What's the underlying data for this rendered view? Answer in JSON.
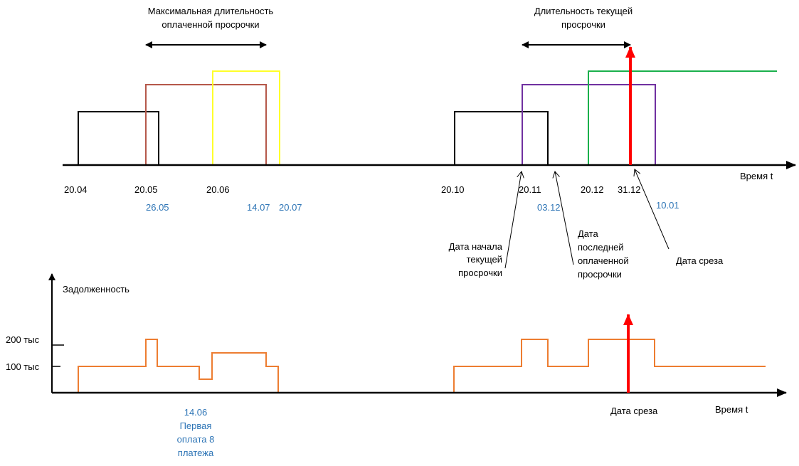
{
  "colors": {
    "black": "#000000",
    "brown": "#b5584a",
    "yellow": "#ffff2a",
    "purple": "#7030a0",
    "green": "#1ab04c",
    "red": "#ff0000",
    "orange": "#ed7d31",
    "blue_text": "#2e75b6"
  },
  "top_chart": {
    "header_max": [
      "Максимальная длительность",
      "оплаченной просрочки"
    ],
    "header_current": [
      "Длительность текущей",
      "просрочки"
    ],
    "axis_label": "Время t",
    "dates_black": [
      "20.04",
      "20.05",
      "20.06",
      "20.10",
      "20.11",
      "20.12",
      "31.12"
    ],
    "dates_blue": [
      "26.05",
      "14.07",
      "20.07",
      "03.12",
      "10.01"
    ],
    "callout_start": [
      "Дата начала",
      "текущей",
      "просрочки"
    ],
    "callout_last_paid": [
      "Дата",
      "последней",
      "оплаченной",
      "просрочки"
    ],
    "callout_cutoff": "Дата среза"
  },
  "bottom_chart": {
    "ylabel": "Задолженность",
    "ytick_200": "200 тыс",
    "ytick_100": "100 тыс",
    "axis_label": "Время t",
    "cutoff_label": "Дата среза",
    "note": [
      "14.06",
      "Первая",
      "оплата 8",
      "платежа"
    ]
  }
}
